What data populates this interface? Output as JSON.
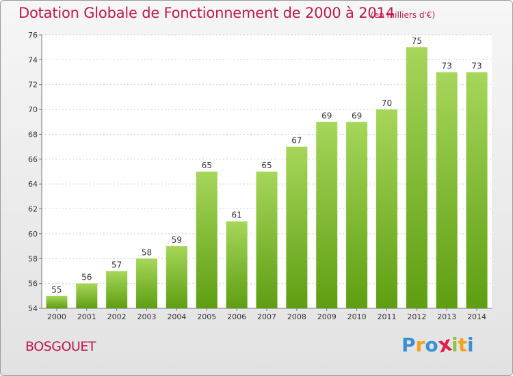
{
  "title": "Dotation Globale de Fonctionnement de 2000 à 2014",
  "subtitle": "(en milliers d'€)",
  "commune": "BOSGOUET",
  "brand": {
    "letters": [
      "P",
      "r",
      "o",
      "x",
      "i",
      "t",
      "i"
    ],
    "colors": [
      "#3a8fd6",
      "#f2a21b",
      "#3a8fd6",
      "#e0204a",
      "#8cc63e",
      "#f2a21b",
      "#3a8fd6"
    ]
  },
  "colors": {
    "title": "#c0184a",
    "bar_top": "#a6d65a",
    "bar_bottom": "#5e9e12"
  },
  "chart_data": {
    "type": "bar",
    "title": "Dotation Globale de Fonctionnement de 2000 à 2014",
    "subtitle": "(en milliers d'€)",
    "categories": [
      "2000",
      "2001",
      "2002",
      "2003",
      "2004",
      "2005",
      "2006",
      "2007",
      "2008",
      "2009",
      "2010",
      "2011",
      "2012",
      "2013",
      "2014"
    ],
    "values": [
      55,
      56,
      57,
      58,
      59,
      65,
      61,
      65,
      67,
      69,
      69,
      70,
      75,
      73,
      73
    ],
    "ylim": [
      54,
      76
    ],
    "yticks": [
      54,
      56,
      58,
      60,
      62,
      64,
      66,
      68,
      70,
      72,
      74,
      76
    ],
    "grid": true,
    "data_labels": true
  }
}
